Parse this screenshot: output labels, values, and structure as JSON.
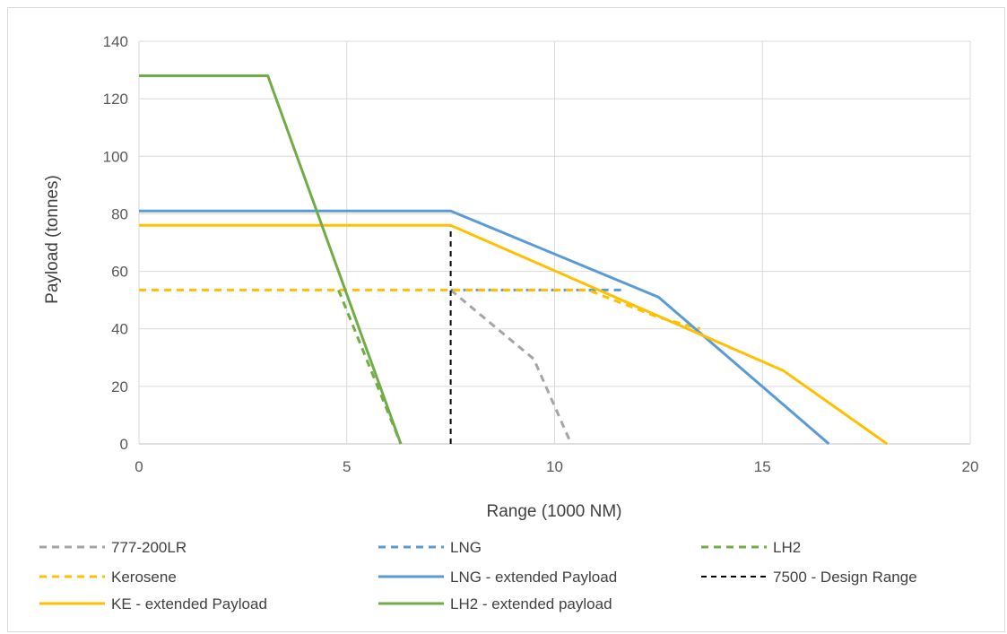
{
  "chart_data": {
    "type": "line",
    "title": "",
    "xlabel": "Range (1000 NM)",
    "ylabel": "Payload (tonnes)",
    "xlim": [
      0,
      20
    ],
    "ylim": [
      0,
      140
    ],
    "xticks": [
      "0",
      "5",
      "10",
      "15",
      "20"
    ],
    "yticks": [
      "0",
      "20",
      "40",
      "60",
      "80",
      "100",
      "120",
      "140"
    ],
    "grid": true,
    "legend_position": "bottom",
    "series": [
      {
        "name": "777-200LR",
        "color": "#a5a5a5",
        "dash": "dashed",
        "x": [
          7.5,
          9.5,
          10.4
        ],
        "y": [
          53.5,
          29.5,
          0
        ]
      },
      {
        "name": "LNG",
        "color": "#5b9bd5",
        "dash": "dashed",
        "x": [
          7.5,
          11.6
        ],
        "y": [
          53.5,
          53.5
        ]
      },
      {
        "name": "LH2",
        "color": "#70ad47",
        "dash": "dashed",
        "x": [
          4.8,
          6.3
        ],
        "y": [
          53.5,
          0
        ]
      },
      {
        "name": "Kerosene",
        "color": "#ffc000",
        "dash": "dashed",
        "x": [
          0,
          10.8,
          12.5,
          13.5
        ],
        "y": [
          53.5,
          53.5,
          44,
          40
        ]
      },
      {
        "name": "LNG - extended Payload",
        "color": "#5b9bd5",
        "dash": "solid",
        "x": [
          0,
          7.5,
          12.5,
          16.6
        ],
        "y": [
          81,
          81,
          51,
          0
        ]
      },
      {
        "name": "7500 - Design Range",
        "color": "#000000",
        "dash": "dashed",
        "x": [
          7.5,
          7.5
        ],
        "y": [
          0,
          76
        ]
      },
      {
        "name": "KE - extended Payload",
        "color": "#ffc000",
        "dash": "solid",
        "x": [
          0,
          7.5,
          15.5,
          18
        ],
        "y": [
          76,
          76,
          25.5,
          0
        ]
      },
      {
        "name": "LH2 - extended payload",
        "color": "#70ad47",
        "dash": "solid",
        "x": [
          0,
          3.1,
          6.3
        ],
        "y": [
          128,
          128,
          0
        ]
      }
    ]
  }
}
